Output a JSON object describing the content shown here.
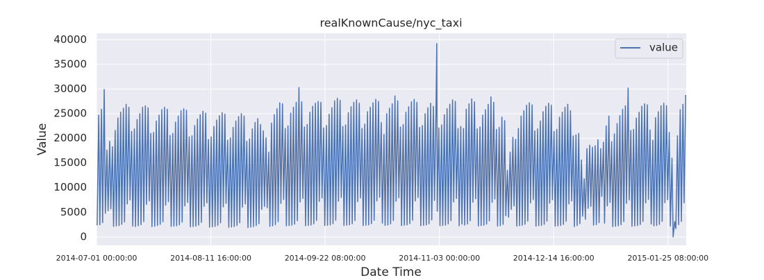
{
  "chart_data": {
    "type": "line",
    "title": "realKnownCause/nyc_taxi",
    "x_label": "Date Time",
    "y_label": "Value",
    "grid": true,
    "legend": "upper right",
    "xlim": [
      "2014-07-01 00:00:00",
      "2015-01-31 23:30:00"
    ],
    "xticks": [
      "2014-07-01 00:00:00",
      "2014-08-11 16:00:00",
      "2014-09-22 08:00:00",
      "2014-11-03 00:00:00",
      "2014-12-14 16:00:00",
      "2015-01-25 08:00:00"
    ],
    "ylim": [
      -1700,
      41300
    ],
    "yticks": [
      0,
      5000,
      10000,
      15000,
      20000,
      25000,
      30000,
      35000,
      40000
    ],
    "x": [],
    "series": [
      {
        "name": "value",
        "color": "#4c72b0",
        "values": []
      }
    ]
  }
}
